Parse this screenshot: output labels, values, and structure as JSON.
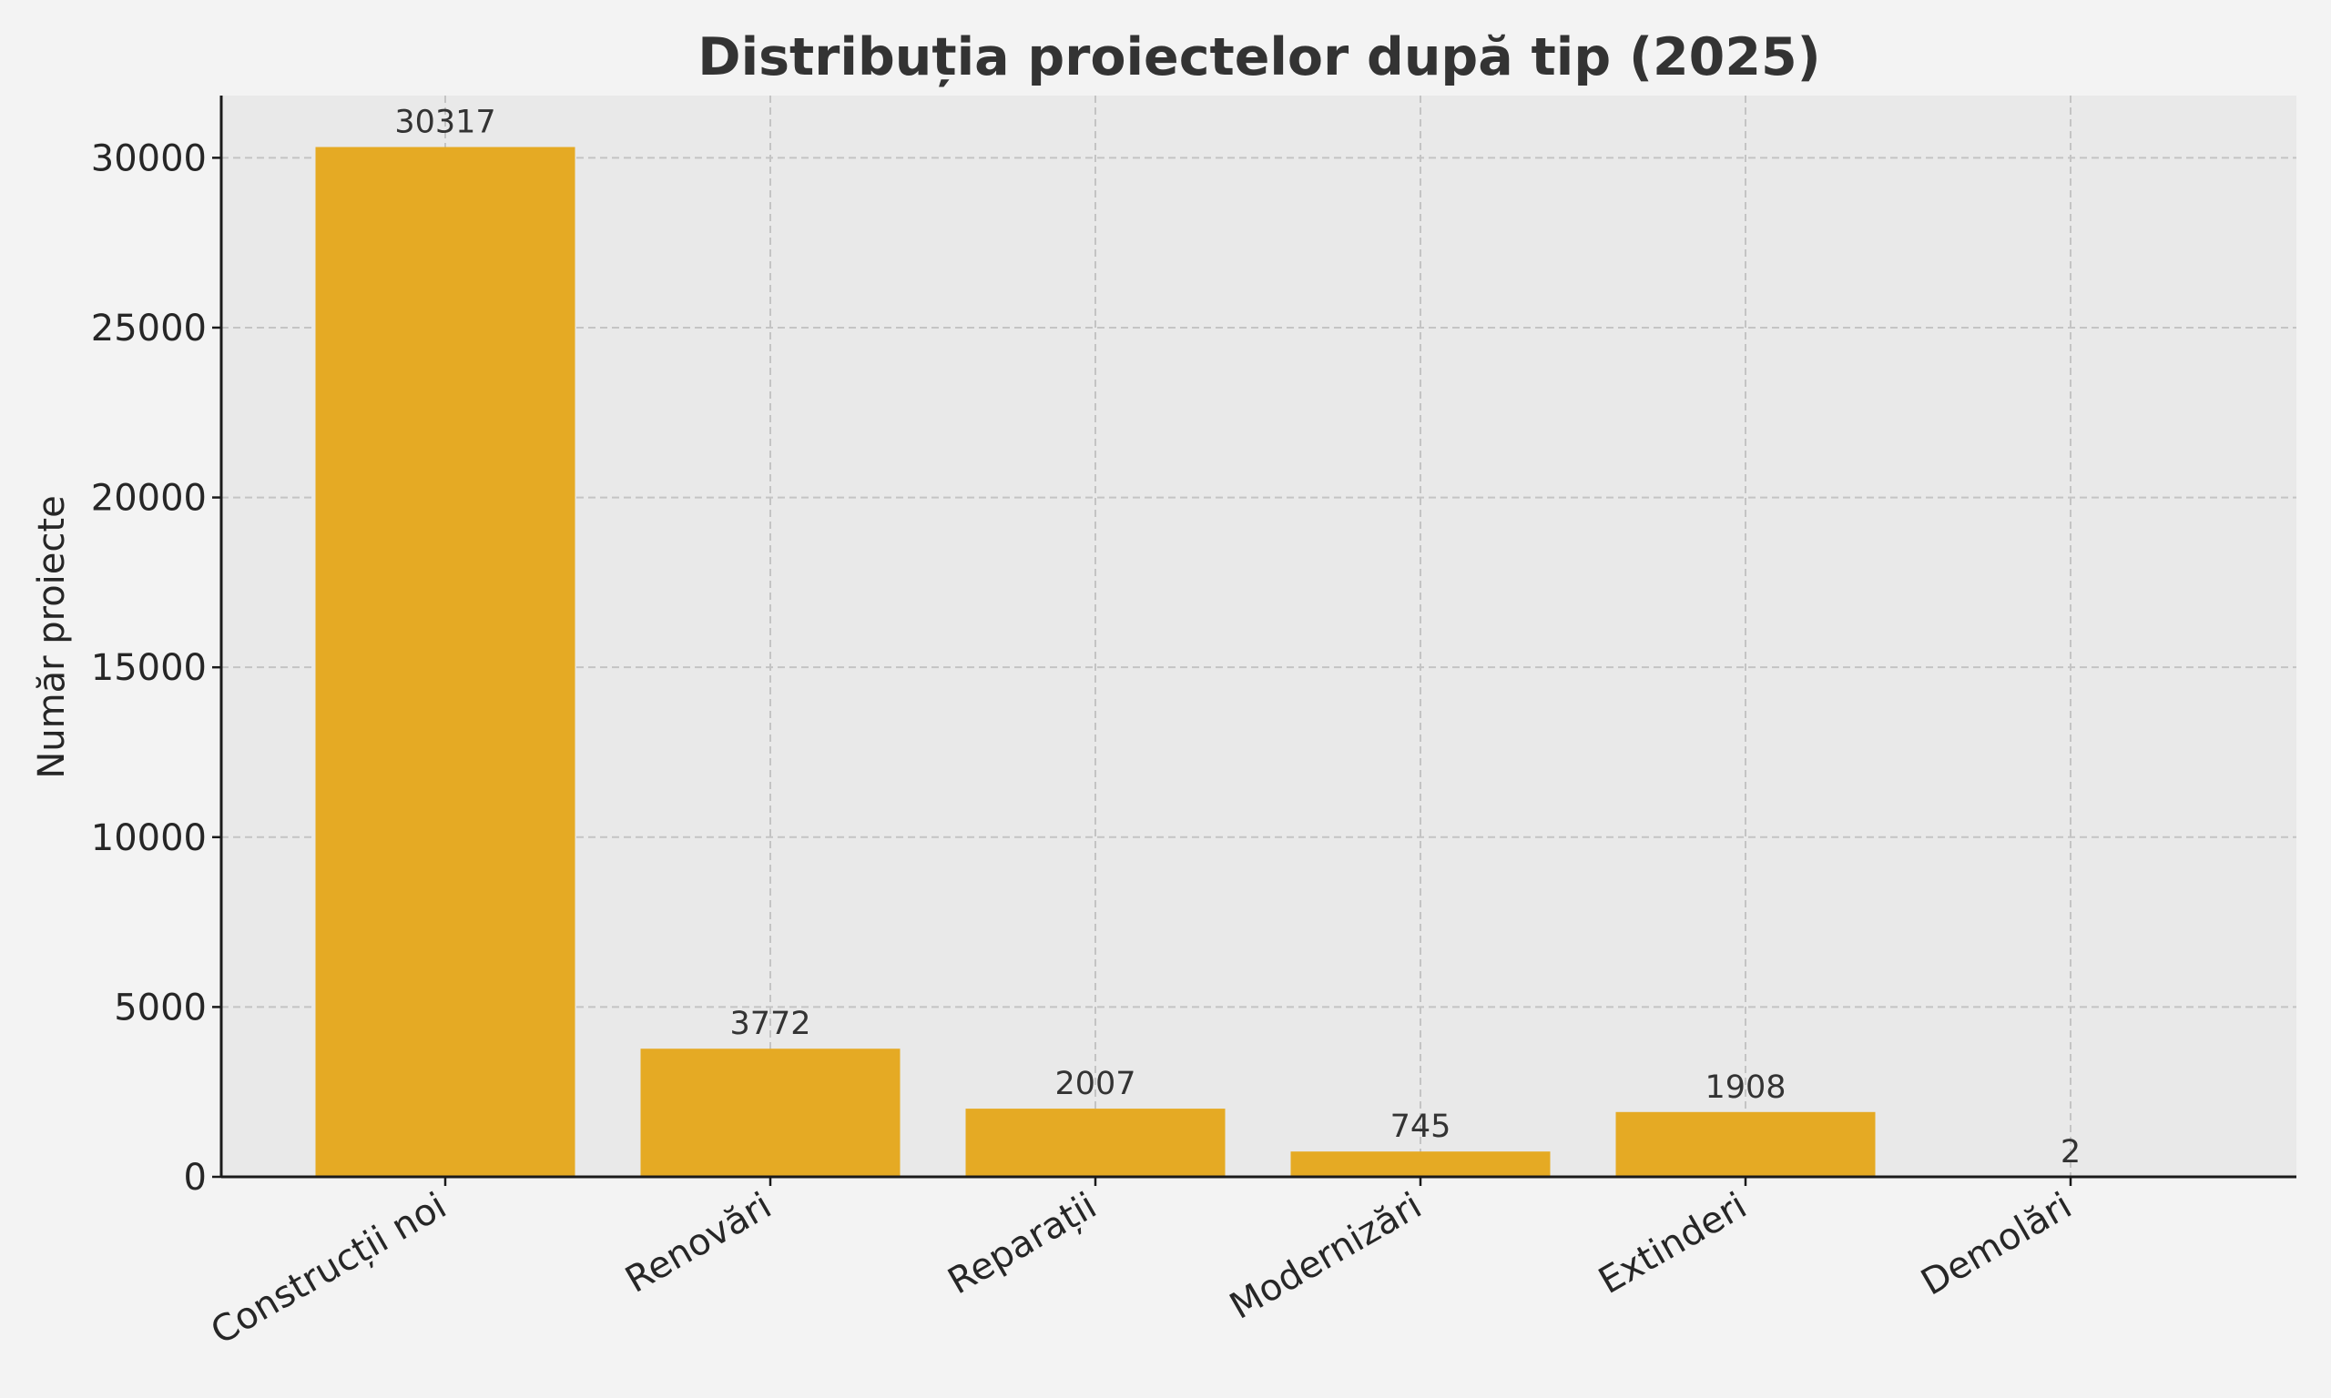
{
  "chart_data": {
    "type": "bar",
    "title": "Distribuția proiectelor după tip (2025)",
    "xlabel": "",
    "ylabel": "Număr proiecte",
    "categories": [
      "Construcții noi",
      "Renovări",
      "Reparații",
      "Modernizări",
      "Extinderi",
      "Demolări"
    ],
    "values": [
      30317,
      3772,
      2007,
      745,
      1908,
      2
    ],
    "data_labels": [
      "30317",
      "3772",
      "2007",
      "745",
      "1908",
      "2"
    ],
    "ylim": [
      0,
      31832
    ],
    "yticks": [
      0,
      5000,
      10000,
      15000,
      20000,
      25000,
      30000
    ],
    "ytick_labels": [
      "0",
      "5000",
      "10000",
      "15000",
      "20000",
      "25000",
      "30000"
    ],
    "grid": true,
    "legend": "none",
    "colors": {
      "bar": "#e5aa24",
      "plot_background": "#e9e9e9",
      "figure_background": "#f3f3f3"
    }
  }
}
